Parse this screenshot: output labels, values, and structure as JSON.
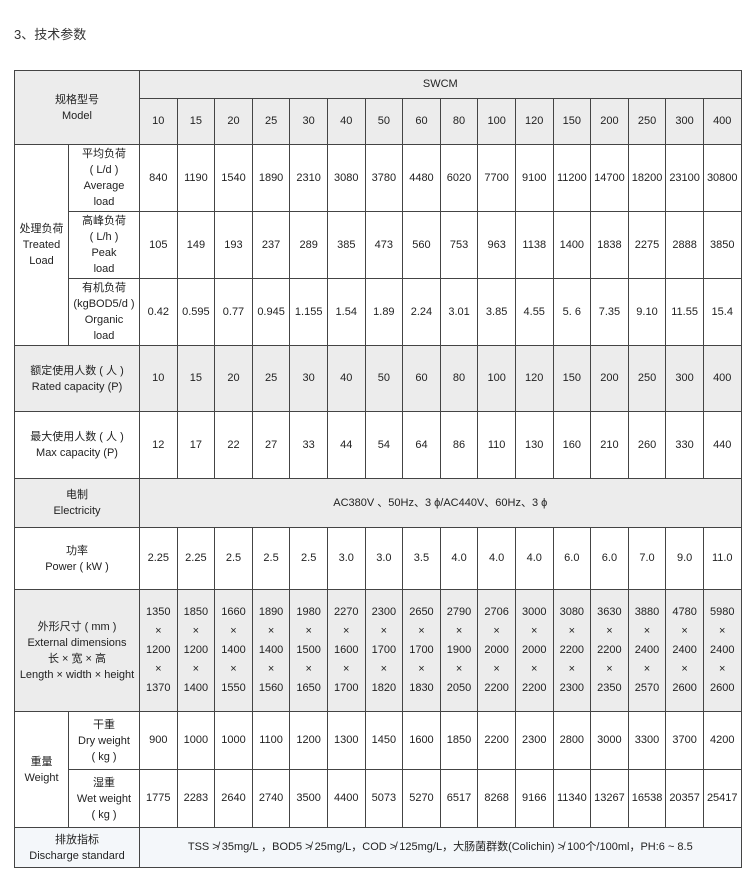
{
  "heading": "3、技术参数",
  "table": {
    "model_label": [
      "规格型号",
      "Model"
    ],
    "series": "SWCM",
    "models": [
      "10",
      "15",
      "20",
      "25",
      "30",
      "40",
      "50",
      "60",
      "80",
      "100",
      "120",
      "150",
      "200",
      "250",
      "300",
      "400"
    ],
    "treated_load": {
      "label": [
        "处理负荷",
        "Treated",
        "Load"
      ],
      "rows": [
        {
          "label": [
            "平均负荷",
            "( L/d )",
            "Average",
            "load"
          ],
          "values": [
            "840",
            "1190",
            "1540",
            "1890",
            "2310",
            "3080",
            "3780",
            "4480",
            "6020",
            "7700",
            "9100",
            "11200",
            "14700",
            "18200",
            "23100",
            "30800"
          ]
        },
        {
          "label": [
            "高峰负荷",
            "( L/h )",
            "Peak",
            "load"
          ],
          "values": [
            "105",
            "149",
            "193",
            "237",
            "289",
            "385",
            "473",
            "560",
            "753",
            "963",
            "1138",
            "1400",
            "1838",
            "2275",
            "2888",
            "3850"
          ]
        },
        {
          "label": [
            "有机负荷",
            "(kgBOD5/d )",
            "Organic",
            "load"
          ],
          "values": [
            "0.42",
            "0.595",
            "0.77",
            "0.945",
            "1.155",
            "1.54",
            "1.89",
            "2.24",
            "3.01",
            "3.85",
            "4.55",
            "5. 6",
            "7.35",
            "9.10",
            "11.55",
            "15.4"
          ]
        }
      ]
    },
    "rated_capacity": {
      "label": [
        "额定使用人数 ( 人 )",
        "Rated capacity (P)"
      ],
      "values": [
        "10",
        "15",
        "20",
        "25",
        "30",
        "40",
        "50",
        "60",
        "80",
        "100",
        "120",
        "150",
        "200",
        "250",
        "300",
        "400"
      ]
    },
    "max_capacity": {
      "label": [
        "最大使用人数 ( 人 )",
        "Max capacity (P)"
      ],
      "values": [
        "12",
        "17",
        "22",
        "27",
        "33",
        "44",
        "54",
        "64",
        "86",
        "110",
        "130",
        "160",
        "210",
        "260",
        "330",
        "440"
      ]
    },
    "electricity": {
      "label": [
        "电制",
        "Electricity"
      ],
      "value": "AC380V 、50Hz、3 ϕ/AC440V、60Hz、3 ϕ"
    },
    "power": {
      "label": [
        "功率",
        "Power ( kW )"
      ],
      "values": [
        "2.25",
        "2.25",
        "2.5",
        "2.5",
        "2.5",
        "3.0",
        "3.0",
        "3.5",
        "4.0",
        "4.0",
        "4.0",
        "6.0",
        "6.0",
        "7.0",
        "9.0",
        "11.0"
      ]
    },
    "dimensions": {
      "label": [
        "外形尺寸 ( mm )",
        "External dimensions",
        "长 × 宽 × 高",
        "Length × width × height"
      ],
      "separator": "×",
      "length": [
        "1350",
        "1850",
        "1660",
        "1890",
        "1980",
        "2270",
        "2300",
        "2650",
        "2790",
        "2706",
        "3000",
        "3080",
        "3630",
        "3880",
        "4780",
        "5980"
      ],
      "width": [
        "1200",
        "1200",
        "1400",
        "1400",
        "1500",
        "1600",
        "1700",
        "1700",
        "1900",
        "2000",
        "2000",
        "2200",
        "2200",
        "2400",
        "2400",
        "2400"
      ],
      "height": [
        "1370",
        "1400",
        "1550",
        "1560",
        "1650",
        "1700",
        "1820",
        "1830",
        "2050",
        "2200",
        "2200",
        "2300",
        "2350",
        "2570",
        "2600",
        "2600"
      ]
    },
    "weight": {
      "label": [
        "重量",
        "Weight"
      ],
      "rows": [
        {
          "label": [
            "干重",
            "Dry weight",
            "( kg )"
          ],
          "values": [
            "900",
            "1000",
            "1000",
            "1100",
            "1200",
            "1300",
            "1450",
            "1600",
            "1850",
            "2200",
            "2300",
            "2800",
            "3000",
            "3300",
            "3700",
            "4200"
          ]
        },
        {
          "label": [
            "湿重",
            "Wet weight",
            "( kg )"
          ],
          "values": [
            "1775",
            "2283",
            "2640",
            "2740",
            "3500",
            "4400",
            "5073",
            "5270",
            "6517",
            "8268",
            "9166",
            "11340",
            "13267",
            "16538",
            "20357",
            "25417"
          ]
        }
      ]
    },
    "discharge": {
      "label": [
        "排放指标",
        "Discharge standard"
      ],
      "value": "TSS ≯ 35mg/L ，BOD5 ≯ 25mg/L，COD ≯ 125mg/L，大肠菌群数(Colichin) ≯ 100个/100ml，PH:6 ~ 8.5"
    }
  }
}
